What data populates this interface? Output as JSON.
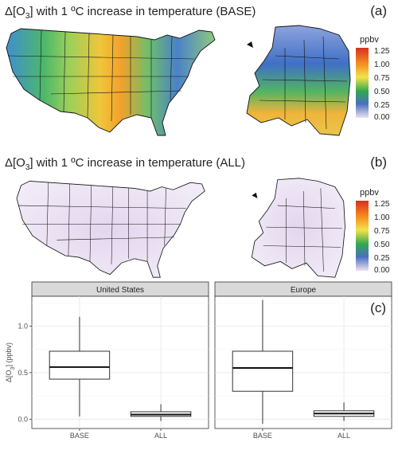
{
  "panel_a": {
    "title_prefix": "Δ[O",
    "title_sub": "3",
    "title_suffix": "] with 1 ºC increase in temperature (BASE)",
    "tag": "(a)"
  },
  "panel_b": {
    "title_prefix": "Δ[O",
    "title_sub": "3",
    "title_suffix": "] with 1 ºC increase in temperature (ALL)",
    "tag": "(b)"
  },
  "legend": {
    "title": "ppbv",
    "ticks": [
      "1.25",
      "1.00",
      "0.75",
      "0.50",
      "0.25",
      "0.00"
    ],
    "range": [
      0,
      1.35
    ],
    "colors": [
      "#ece3f0",
      "#4a6fbf",
      "#2fa84f",
      "#f2e34a",
      "#f58a1f",
      "#d7301f"
    ]
  },
  "chart_data": {
    "type": "box",
    "tag": "(c)",
    "ylabel_prefix": "Δ[O",
    "ylabel_sub": "3",
    "ylabel_suffix": "] (ppbv)",
    "ylim": [
      -0.1,
      1.32
    ],
    "yticks": [
      "0.0",
      "0.5",
      "1.0"
    ],
    "ytick_values": [
      0,
      0.5,
      1.0
    ],
    "categories": [
      "BASE",
      "ALL"
    ],
    "grid": true,
    "facets": [
      {
        "name": "United States",
        "boxes": [
          {
            "category": "BASE",
            "min": 0.03,
            "q1": 0.43,
            "median": 0.56,
            "q3": 0.73,
            "max": 1.1
          },
          {
            "category": "ALL",
            "min": -0.02,
            "q1": 0.03,
            "median": 0.05,
            "q3": 0.08,
            "max": 0.16
          }
        ]
      },
      {
        "name": "Europe",
        "boxes": [
          {
            "category": "BASE",
            "min": -0.05,
            "q1": 0.3,
            "median": 0.55,
            "q3": 0.73,
            "max": 1.28
          },
          {
            "category": "ALL",
            "min": -0.02,
            "q1": 0.03,
            "median": 0.06,
            "q3": 0.09,
            "max": 0.18
          }
        ]
      }
    ]
  }
}
